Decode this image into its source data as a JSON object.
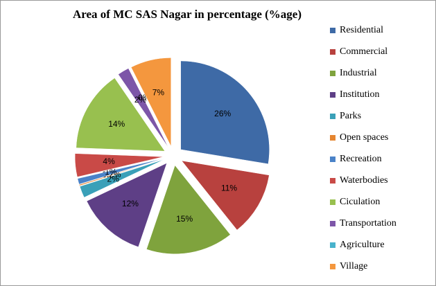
{
  "chart_data": {
    "type": "pie",
    "title": "Area of  MC  SAS Nagar in percentage (%age)",
    "categories": [
      "Residential",
      "Commercial",
      "Industrial",
      "Institution",
      "Parks",
      "Open spaces",
      "Recreation",
      "Waterbodies",
      "Ciculation",
      "Transportation",
      "Agriculture",
      "Village"
    ],
    "values": [
      26,
      11,
      15,
      12,
      2,
      0.2,
      1,
      4,
      14,
      2,
      0,
      7
    ],
    "value_labels": [
      "26%",
      "11%",
      "15%",
      "12%",
      "2%",
      "0.2%",
      "1%",
      "4%",
      "14%",
      "2%",
      "0%",
      "7%"
    ],
    "colors": [
      "#3e6aa6",
      "#b8413e",
      "#7fa33d",
      "#5e3f86",
      "#3aa0b8",
      "#e58530",
      "#4a82c8",
      "#c94a47",
      "#98c04f",
      "#7d56a8",
      "#48b2cc",
      "#f4973e"
    ],
    "legend": "right"
  }
}
